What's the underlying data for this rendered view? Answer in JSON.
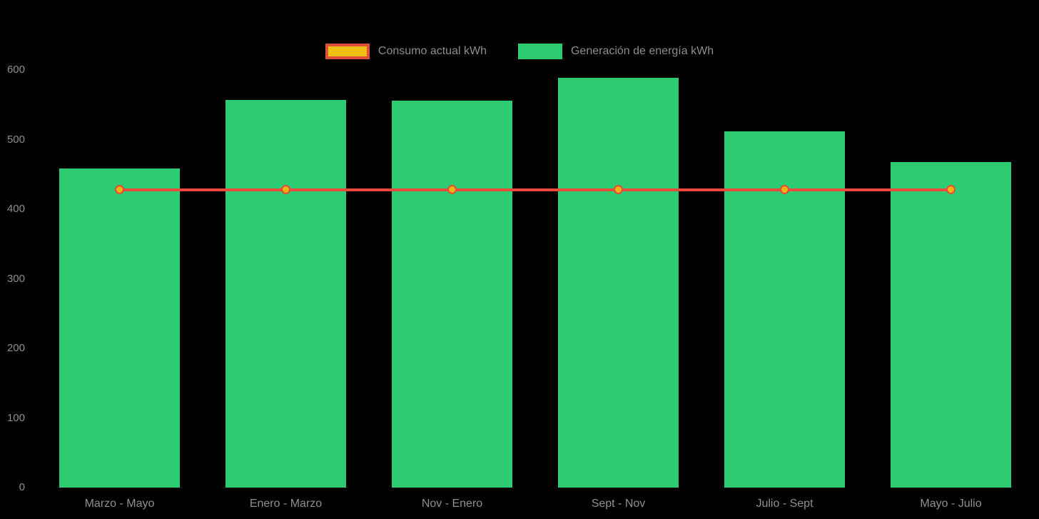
{
  "legend": {
    "items": [
      {
        "label": "Consumo actual kWh",
        "type": "line",
        "fill": "#eec112",
        "border": "#e2503c"
      },
      {
        "label": "Generación de energía kWh",
        "type": "bar",
        "fill": "#2dcb72"
      }
    ]
  },
  "chart_data": {
    "type": "bar",
    "title": "",
    "xlabel": "",
    "ylabel": "",
    "categories": [
      "Marzo - Mayo",
      "Enero - Marzo",
      "Nov - Enero",
      "Sept - Nov",
      "Julio - Sept",
      "Mayo - Julio"
    ],
    "series": [
      {
        "name": "Consumo actual kWh",
        "type": "line",
        "values": [
          428,
          428,
          428,
          428,
          428,
          428
        ],
        "line_color": "#e8493a",
        "point_fill": "#f0b511",
        "point_border": "#e8493a"
      },
      {
        "name": "Generación de energía kWh",
        "type": "bar",
        "values": [
          458,
          557,
          556,
          589,
          512,
          468
        ],
        "color": "#2dcb72"
      }
    ],
    "y_ticks": [
      0,
      100,
      200,
      300,
      400,
      500,
      600
    ],
    "ylim": [
      0,
      600
    ],
    "grid": false,
    "legend_position": "top",
    "background": "#000000",
    "axis_text_color": "#8f8f8f"
  }
}
